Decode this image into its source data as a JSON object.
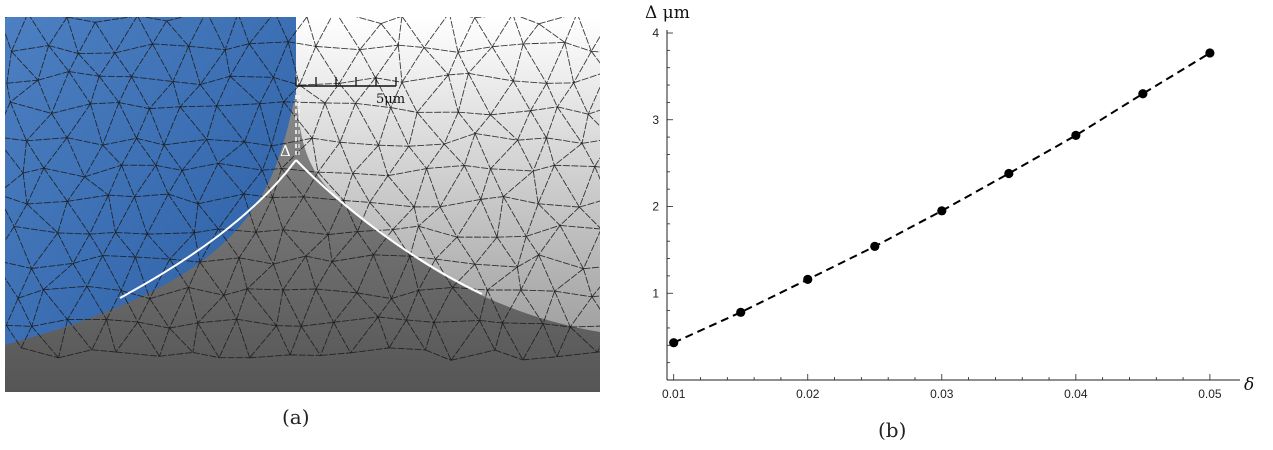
{
  "panel_a": {
    "caption": "(a)",
    "scale_bar_label": "5μm",
    "delta_marker": "Δ"
  },
  "panel_b": {
    "caption": "(b)"
  },
  "chart_data": {
    "type": "line",
    "title": "",
    "xlabel": "δ",
    "ylabel": "Δ μm",
    "xlim": [
      0.0095,
      0.0515
    ],
    "ylim": [
      0,
      4
    ],
    "x_ticks": [
      0.01,
      0.02,
      0.03,
      0.04,
      0.05
    ],
    "y_ticks": [
      1,
      2,
      3,
      4
    ],
    "x_tick_labels": [
      "0.01",
      "0.02",
      "0.03",
      "0.04",
      "0.05"
    ],
    "y_tick_labels": [
      "1",
      "2",
      "3",
      "4"
    ],
    "grid": false,
    "series": [
      {
        "marker": "circle",
        "line_style": "dashed",
        "color": "#000000",
        "x": [
          0.01,
          0.015,
          0.02,
          0.025,
          0.03,
          0.035,
          0.04,
          0.045,
          0.05
        ],
        "y": [
          0.43,
          0.78,
          1.16,
          1.54,
          1.95,
          2.38,
          2.82,
          3.3,
          3.77
        ]
      }
    ]
  }
}
